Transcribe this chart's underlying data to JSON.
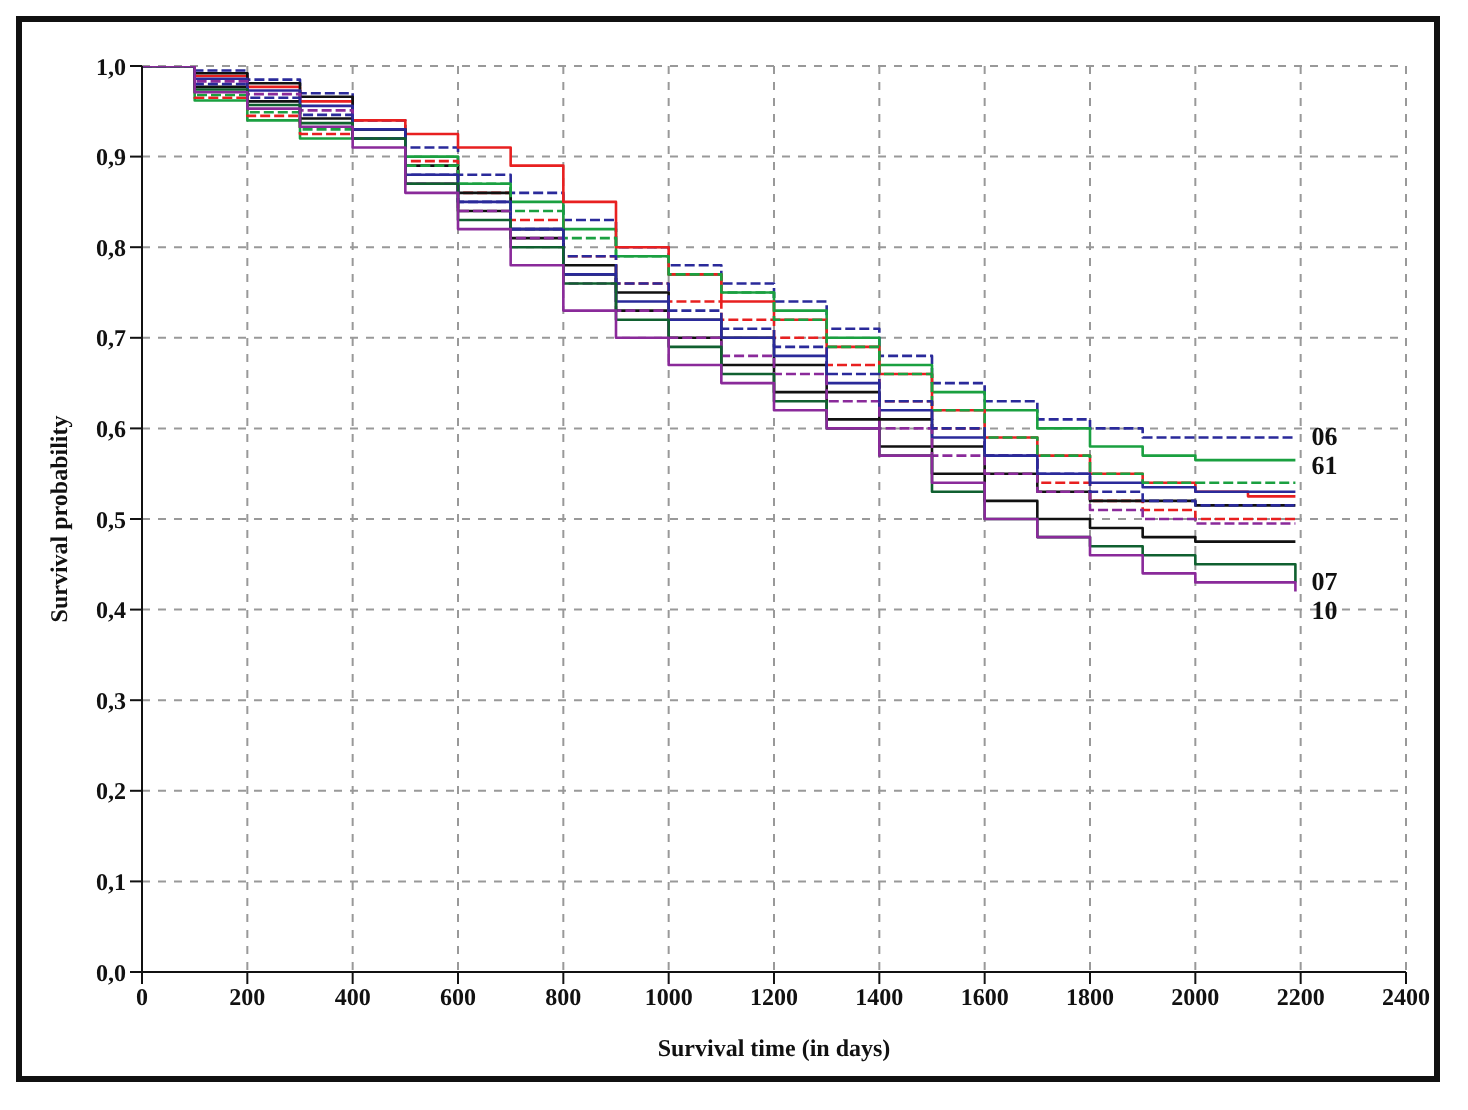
{
  "chart_data": {
    "type": "step",
    "xlabel": "Survival time (in days)",
    "ylabel": "Survival probability",
    "x": [
      0,
      100,
      200,
      300,
      400,
      500,
      600,
      700,
      800,
      900,
      1000,
      1100,
      1200,
      1300,
      1400,
      1500,
      1600,
      1700,
      1800,
      1900,
      2000,
      2100,
      2190
    ],
    "series": [
      {
        "name": "06",
        "color": "#2a2a9a",
        "line_style": "dashed",
        "values": [
          1,
          0.995,
          0.985,
          0.97,
          0.94,
          0.91,
          0.88,
          0.86,
          0.83,
          0.8,
          0.78,
          0.76,
          0.74,
          0.71,
          0.68,
          0.65,
          0.63,
          0.61,
          0.6,
          0.59,
          0.59,
          0.59,
          0.59
        ]
      },
      {
        "name": "61",
        "color": "#1aa040",
        "line_style": "solid",
        "values": [
          1,
          0.962,
          0.94,
          0.92,
          0.93,
          0.9,
          0.87,
          0.85,
          0.82,
          0.79,
          0.77,
          0.75,
          0.73,
          0.7,
          0.67,
          0.64,
          0.62,
          0.6,
          0.58,
          0.57,
          0.565,
          0.565,
          0.565
        ]
      },
      {
        "color": "#e82020",
        "line_style": "solid",
        "values": [
          1,
          0.989,
          0.977,
          0.961,
          0.94,
          0.925,
          0.91,
          0.89,
          0.85,
          0.8,
          0.77,
          0.74,
          0.72,
          0.69,
          0.66,
          0.62,
          0.59,
          0.57,
          0.55,
          0.54,
          0.53,
          0.525,
          0.525
        ]
      },
      {
        "color": "#e82020",
        "line_style": "dashed",
        "values": [
          1,
          0.965,
          0.945,
          0.925,
          0.92,
          0.895,
          0.86,
          0.83,
          0.79,
          0.76,
          0.74,
          0.72,
          0.7,
          0.67,
          0.63,
          0.6,
          0.57,
          0.54,
          0.52,
          0.51,
          0.5,
          0.5,
          0.5
        ]
      },
      {
        "color": "#111111",
        "line_style": "solid",
        "values": [
          1,
          0.992,
          0.981,
          0.966,
          0.93,
          0.89,
          0.86,
          0.82,
          0.78,
          0.75,
          0.72,
          0.7,
          0.67,
          0.64,
          0.61,
          0.58,
          0.55,
          0.53,
          0.52,
          0.52,
          0.515,
          0.515,
          0.515
        ]
      },
      {
        "color": "#111111",
        "line_style": "solid",
        "values": [
          1,
          0.977,
          0.961,
          0.942,
          0.92,
          0.87,
          0.84,
          0.81,
          0.77,
          0.73,
          0.7,
          0.67,
          0.64,
          0.61,
          0.58,
          0.55,
          0.52,
          0.5,
          0.49,
          0.48,
          0.475,
          0.475,
          0.475
        ]
      },
      {
        "color": "#2a2a9a",
        "line_style": "solid",
        "values": [
          1,
          0.986,
          0.973,
          0.956,
          0.93,
          0.88,
          0.85,
          0.82,
          0.77,
          0.74,
          0.72,
          0.7,
          0.68,
          0.65,
          0.62,
          0.59,
          0.57,
          0.55,
          0.54,
          0.535,
          0.53,
          0.53,
          0.53
        ]
      },
      {
        "color": "#1aa040",
        "line_style": "dashed",
        "values": [
          1,
          0.968,
          0.949,
          0.93,
          0.92,
          0.89,
          0.87,
          0.84,
          0.81,
          0.79,
          0.77,
          0.75,
          0.72,
          0.69,
          0.66,
          0.62,
          0.59,
          0.57,
          0.55,
          0.54,
          0.54,
          0.54,
          0.54
        ]
      },
      {
        "color": "#8a2a9a",
        "line_style": "dashed",
        "values": [
          1,
          0.983,
          0.969,
          0.951,
          0.92,
          0.87,
          0.84,
          0.81,
          0.76,
          0.73,
          0.7,
          0.68,
          0.66,
          0.63,
          0.6,
          0.57,
          0.55,
          0.53,
          0.51,
          0.5,
          0.495,
          0.495,
          0.495
        ]
      },
      {
        "color": "#2a2a9a",
        "line_style": "dashed",
        "values": [
          1,
          0.98,
          0.965,
          0.946,
          0.92,
          0.88,
          0.85,
          0.82,
          0.79,
          0.76,
          0.73,
          0.71,
          0.69,
          0.66,
          0.63,
          0.6,
          0.57,
          0.55,
          0.53,
          0.52,
          0.515,
          0.515,
          0.515
        ]
      },
      {
        "name": "07",
        "color": "#106030",
        "line_style": "solid",
        "values": [
          1,
          0.974,
          0.957,
          0.937,
          0.92,
          0.87,
          0.83,
          0.8,
          0.76,
          0.72,
          0.69,
          0.66,
          0.63,
          0.6,
          0.57,
          0.53,
          0.5,
          0.48,
          0.47,
          0.46,
          0.45,
          0.45,
          0.43
        ]
      },
      {
        "name": "10",
        "color": "#8a2a9a",
        "line_style": "solid",
        "values": [
          1,
          0.971,
          0.953,
          0.933,
          0.91,
          0.86,
          0.82,
          0.78,
          0.73,
          0.7,
          0.67,
          0.65,
          0.62,
          0.6,
          0.57,
          0.54,
          0.5,
          0.48,
          0.46,
          0.44,
          0.43,
          0.43,
          0.42
        ]
      }
    ],
    "xlim": [
      0,
      2400
    ],
    "xticks": [
      0,
      200,
      400,
      600,
      800,
      1000,
      1200,
      1400,
      1600,
      1800,
      2000,
      2200,
      2400
    ],
    "ylim": [
      0,
      1
    ],
    "yticks": [
      {
        "value": 0,
        "label": "0,0"
      },
      {
        "value": 0.1,
        "label": "0,1"
      },
      {
        "value": 0.2,
        "label": "0,2"
      },
      {
        "value": 0.3,
        "label": "0,3"
      },
      {
        "value": 0.4,
        "label": "0,4"
      },
      {
        "value": 0.5,
        "label": "0,5"
      },
      {
        "value": 0.6,
        "label": "0,6"
      },
      {
        "value": 0.7,
        "label": "0,7"
      },
      {
        "value": 0.8,
        "label": "0,8"
      },
      {
        "value": 0.9,
        "label": "0,9"
      },
      {
        "value": 1,
        "label": "1,0"
      }
    ],
    "grid": true,
    "marker": "none",
    "legend": false
  }
}
